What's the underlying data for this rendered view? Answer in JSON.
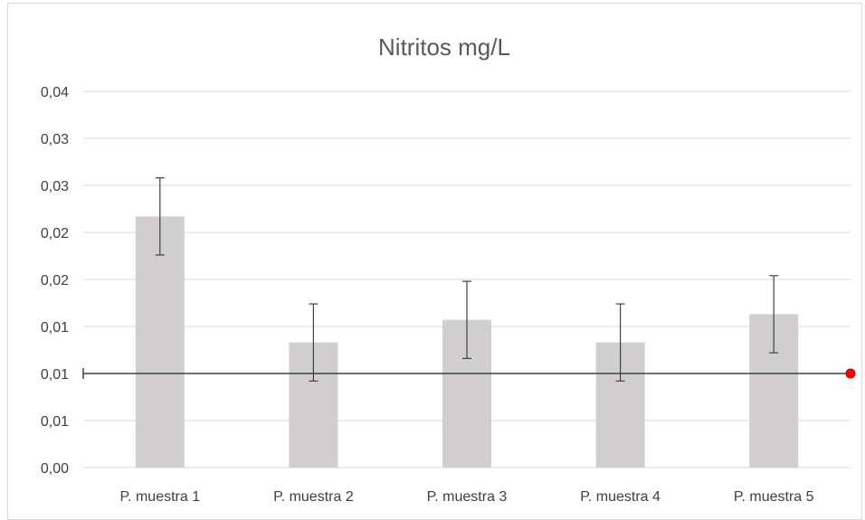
{
  "chart_data": {
    "type": "bar",
    "title": "Nitritos mg/L",
    "xlabel": "",
    "ylabel": "",
    "categories": [
      "P. muestra  1",
      "P. muestra 2",
      "P. muestra 3",
      "P. muestra 4",
      "P. muestra 5"
    ],
    "values": [
      0.0267,
      0.0133,
      0.0157,
      0.0133,
      0.0163
    ],
    "error": [
      0.0041,
      0.0041,
      0.0041,
      0.0041,
      0.0041
    ],
    "ylim": [
      0,
      0.04
    ],
    "yticks": [
      0,
      0.005,
      0.01,
      0.015,
      0.02,
      0.025,
      0.03,
      0.035,
      0.04
    ],
    "ytick_labels": [
      "0,00",
      "0,01",
      "0,01",
      "0,01",
      "0,02",
      "0,02",
      "0,03",
      "0,03",
      "0,04"
    ],
    "grid": true,
    "reference_line": {
      "value": 0.01,
      "color": "#404040",
      "marker_color": "#ff0000"
    },
    "colors": {
      "bar": "#d0cece",
      "grid": "#d9d9d9",
      "error_bar": "#404040",
      "text": "#404040",
      "title": "#595959"
    }
  }
}
